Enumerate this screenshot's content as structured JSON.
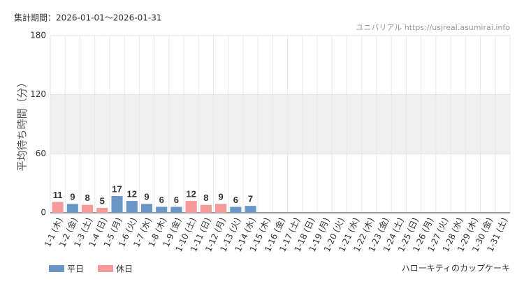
{
  "chart_data": {
    "type": "bar",
    "title": "集計期間：2026-01-01～2026-01-31",
    "source": "ユニバリアル  https://usjreal.asumirai.info",
    "subtitle": "ハローキティのカップケーキ",
    "y_label": "平均待ち時間（分）",
    "categories": [
      "1-1 (木)",
      "1-2 (金)",
      "1-3 (土)",
      "1-4 (日)",
      "1-5 (月)",
      "1-6 (火)",
      "1-7 (水)",
      "1-8 (木)",
      "1-9 (金)",
      "1-10 (土)",
      "1-11 (日)",
      "1-12 (月)",
      "1-13 (火)",
      "1-14 (水)",
      "1-15 (木)",
      "1-16 (金)",
      "1-17 (土)",
      "1-18 (日)",
      "1-19 (月)",
      "1-20 (火)",
      "1-21 (水)",
      "1-22 (木)",
      "1-23 (金)",
      "1-24 (土)",
      "1-25 (日)",
      "1-26 (月)",
      "1-27 (火)",
      "1-28 (水)",
      "1-29 (木)",
      "1-30 (金)",
      "1-31 (土)"
    ],
    "category_series": [
      1,
      0,
      1,
      1,
      0,
      0,
      0,
      0,
      0,
      1,
      1,
      1,
      0,
      0,
      0,
      0,
      1,
      1,
      0,
      0,
      0,
      0,
      0,
      1,
      1,
      0,
      0,
      0,
      0,
      0,
      1
    ],
    "series": [
      {
        "name": "平日",
        "color": "#6a97c5",
        "values": [
          null,
          9,
          null,
          null,
          17,
          12,
          9,
          6,
          6,
          null,
          null,
          null,
          6,
          7,
          null,
          null,
          null,
          null,
          null,
          null,
          null,
          null,
          null,
          null,
          null,
          null,
          null,
          null,
          null,
          null,
          null
        ]
      },
      {
        "name": "休日",
        "color": "#f59a9a",
        "values": [
          11,
          null,
          8,
          5,
          null,
          null,
          null,
          null,
          null,
          12,
          8,
          9,
          null,
          null,
          null,
          null,
          null,
          null,
          null,
          null,
          null,
          null,
          null,
          null,
          null,
          null,
          null,
          null,
          null,
          null,
          null
        ]
      }
    ],
    "ylim": [
      0,
      180
    ],
    "yticks": [
      0,
      60,
      120,
      180
    ],
    "grid": true
  }
}
